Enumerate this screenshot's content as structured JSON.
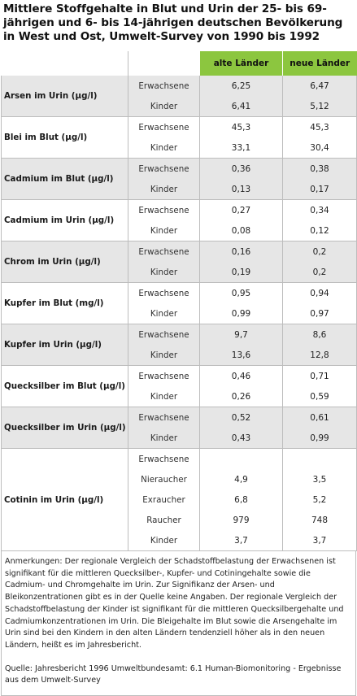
{
  "title": "Mittlere Stoffgehalte in Blut und Urin der 25- bis 69-jährigen und 6- bis 14-jährigen deutschen Bevölkerung in West und Ost, Umwelt-Survey von 1990 bis 1992",
  "columns": {
    "west": "alte Länder",
    "east": "neue Länder"
  },
  "groups": [
    {
      "label": "Arsen im Urin (µg/l)",
      "shade": true,
      "rows": [
        {
          "sub": "Erwachsene",
          "west": "6,25",
          "east": "6,47"
        },
        {
          "sub": "Kinder",
          "west": "6,41",
          "east": "5,12"
        }
      ]
    },
    {
      "label": "Blei im Blut (µg/l)",
      "shade": false,
      "rows": [
        {
          "sub": "Erwachsene",
          "west": "45,3",
          "east": "45,3"
        },
        {
          "sub": "Kinder",
          "west": "33,1",
          "east": "30,4"
        }
      ]
    },
    {
      "label": "Cadmium im Blut (µg/l)",
      "shade": true,
      "rows": [
        {
          "sub": "Erwachsene",
          "west": "0,36",
          "east": "0,38"
        },
        {
          "sub": "Kinder",
          "west": "0,13",
          "east": "0,17"
        }
      ]
    },
    {
      "label": "Cadmium im Urin (µg/l)",
      "shade": false,
      "rows": [
        {
          "sub": "Erwachsene",
          "west": "0,27",
          "east": "0,34"
        },
        {
          "sub": "Kinder",
          "west": "0,08",
          "east": "0,12"
        }
      ]
    },
    {
      "label": "Chrom im Urin (µg/l)",
      "shade": true,
      "rows": [
        {
          "sub": "Erwachsene",
          "west": "0,16",
          "east": "0,2"
        },
        {
          "sub": "Kinder",
          "west": "0,19",
          "east": "0,2"
        }
      ]
    },
    {
      "label": "Kupfer im Blut (mg/l)",
      "shade": false,
      "rows": [
        {
          "sub": "Erwachsene",
          "west": "0,95",
          "east": "0,94"
        },
        {
          "sub": "Kinder",
          "west": "0,99",
          "east": "0,97"
        }
      ]
    },
    {
      "label": "Kupfer im Urin (µg/l)",
      "shade": true,
      "rows": [
        {
          "sub": "Erwachsene",
          "west": "9,7",
          "east": "8,6"
        },
        {
          "sub": "Kinder",
          "west": "13,6",
          "east": "12,8"
        }
      ]
    },
    {
      "label": "Quecksilber im Blut (µg/l)",
      "shade": false,
      "rows": [
        {
          "sub": "Erwachsene",
          "west": "0,46",
          "east": "0,71"
        },
        {
          "sub": "Kinder",
          "west": "0,26",
          "east": "0,59"
        }
      ]
    },
    {
      "label": "Quecksilber im Urin (µg/l)",
      "shade": true,
      "rows": [
        {
          "sub": "Erwachsene",
          "west": "0,52",
          "east": "0,61"
        },
        {
          "sub": "Kinder",
          "west": "0,43",
          "east": "0,99"
        }
      ]
    },
    {
      "label": "Cotinin im Urin (µg/l)",
      "shade": false,
      "rows": [
        {
          "sub": "Erwachsene",
          "west": "",
          "east": ""
        },
        {
          "sub": "Nieraucher",
          "west": "4,9",
          "east": "3,5"
        },
        {
          "sub": "Exraucher",
          "west": "6,8",
          "east": "5,2"
        },
        {
          "sub": "Raucher",
          "west": "979",
          "east": "748"
        },
        {
          "sub": "Kinder",
          "west": "3,7",
          "east": "3,7"
        }
      ]
    }
  ],
  "notes": "Anmerkungen: Der regionale Vergleich der Schadstoffbelastung der Erwachsenen ist signifikant für die mittleren Quecksilber-, Kupfer- und Cotiningehalte sowie die Cadmium- und Chromgehalte im Urin. Zur Signifikanz der Arsen- und Bleikonzentrationen gibt es in der Quelle keine Angaben.  Der regionale Vergleich der Schadstoffbelastung der Kinder ist signifikant für die mittleren Quecksilbergehalte und Cadmiumkonzentrationen im Urin. Die Bleigehalte im Blut sowie die Arsengehalte im Urin sind bei den Kindern in den alten Ländern tendenziell höher als in den neuen Ländern, heißt es im Jahresbericht.",
  "source": "Quelle: Jahresbericht 1996 Umweltbundesamt: 6.1 Human-Biomonitoring - Ergebnisse aus dem Umwelt-Survey",
  "colors": {
    "header_green": "#8cc63f",
    "row_shade": "#e6e6e6"
  }
}
